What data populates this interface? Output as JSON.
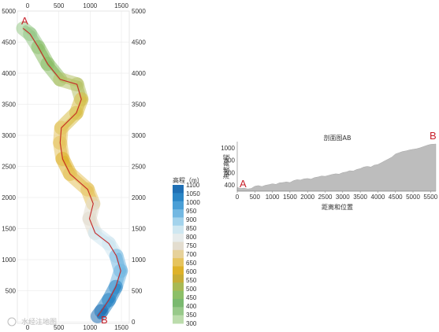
{
  "chart_data": [
    {
      "type": "map",
      "x_ticks": [
        0,
        500,
        1000,
        1500
      ],
      "y_ticks": [
        0,
        500,
        1000,
        1500,
        2000,
        2500,
        3000,
        3500,
        4000,
        4500,
        5000
      ],
      "xlim": [
        0,
        1650
      ],
      "ylim": [
        0,
        5000
      ],
      "start_label": "A",
      "end_label": "B",
      "route": [
        {
          "x": -70,
          "y": 4720
        },
        {
          "x": 40,
          "y": 4630
        },
        {
          "x": 170,
          "y": 4420
        },
        {
          "x": 320,
          "y": 4150
        },
        {
          "x": 520,
          "y": 3900
        },
        {
          "x": 790,
          "y": 3820
        },
        {
          "x": 860,
          "y": 3580
        },
        {
          "x": 780,
          "y": 3360
        },
        {
          "x": 540,
          "y": 3120
        },
        {
          "x": 520,
          "y": 2880
        },
        {
          "x": 560,
          "y": 2620
        },
        {
          "x": 680,
          "y": 2380
        },
        {
          "x": 960,
          "y": 2130
        },
        {
          "x": 1050,
          "y": 1900
        },
        {
          "x": 990,
          "y": 1660
        },
        {
          "x": 1080,
          "y": 1430
        },
        {
          "x": 1300,
          "y": 1260
        },
        {
          "x": 1420,
          "y": 1060
        },
        {
          "x": 1490,
          "y": 820
        },
        {
          "x": 1410,
          "y": 560
        },
        {
          "x": 1300,
          "y": 350
        },
        {
          "x": 1180,
          "y": 170
        },
        {
          "x": 1120,
          "y": 90
        }
      ]
    },
    {
      "type": "area",
      "title": "剖面图AB",
      "xlabel": "距离和位置",
      "ylabel": "海拔高程",
      "x_ticks": [
        0,
        500,
        1000,
        1500,
        2000,
        2500,
        3000,
        3500,
        4000,
        4500,
        5000,
        5500
      ],
      "y_ticks": [
        400,
        600,
        800,
        1000
      ],
      "xlim": [
        0,
        5650
      ],
      "ylim": [
        300,
        1100
      ],
      "start_label": "A",
      "end_label": "B",
      "x": [
        0,
        100,
        200,
        300,
        400,
        500,
        600,
        700,
        800,
        900,
        1000,
        1100,
        1200,
        1300,
        1400,
        1500,
        1600,
        1700,
        1800,
        1900,
        2000,
        2100,
        2200,
        2300,
        2400,
        2500,
        2600,
        2700,
        2800,
        2900,
        3000,
        3100,
        3200,
        3300,
        3400,
        3500,
        3600,
        3700,
        3800,
        3900,
        4000,
        4100,
        4200,
        4300,
        4400,
        4500,
        4600,
        4700,
        4800,
        4900,
        5000,
        5100,
        5200,
        5300,
        5400,
        5500,
        5600,
        5650
      ],
      "y": [
        360,
        345,
        350,
        335,
        345,
        380,
        390,
        375,
        395,
        405,
        420,
        410,
        435,
        440,
        450,
        440,
        470,
        485,
        480,
        500,
        505,
        495,
        520,
        530,
        545,
        540,
        555,
        570,
        580,
        575,
        600,
        610,
        630,
        625,
        650,
        665,
        690,
        700,
        690,
        720,
        730,
        760,
        790,
        820,
        850,
        900,
        920,
        940,
        950,
        965,
        975,
        985,
        1000,
        1020,
        1040,
        1055,
        1060,
        1062
      ]
    }
  ],
  "legend": {
    "title": "高程（m）",
    "values": [
      1100,
      1050,
      1000,
      950,
      900,
      850,
      800,
      750,
      700,
      650,
      600,
      550,
      500,
      450,
      400,
      350,
      300
    ],
    "colors": [
      "#1f6fb4",
      "#2b86c6",
      "#4a9fd6",
      "#73b8e2",
      "#a3d3ec",
      "#cfe7f1",
      "#e7ecec",
      "#e3ddcf",
      "#e6d19a",
      "#e6c45e",
      "#deb22a",
      "#c7ad37",
      "#a8b955",
      "#8cbf68",
      "#7ab96f",
      "#98c98a",
      "#bcdcac"
    ]
  },
  "watermark": "水经注地图"
}
